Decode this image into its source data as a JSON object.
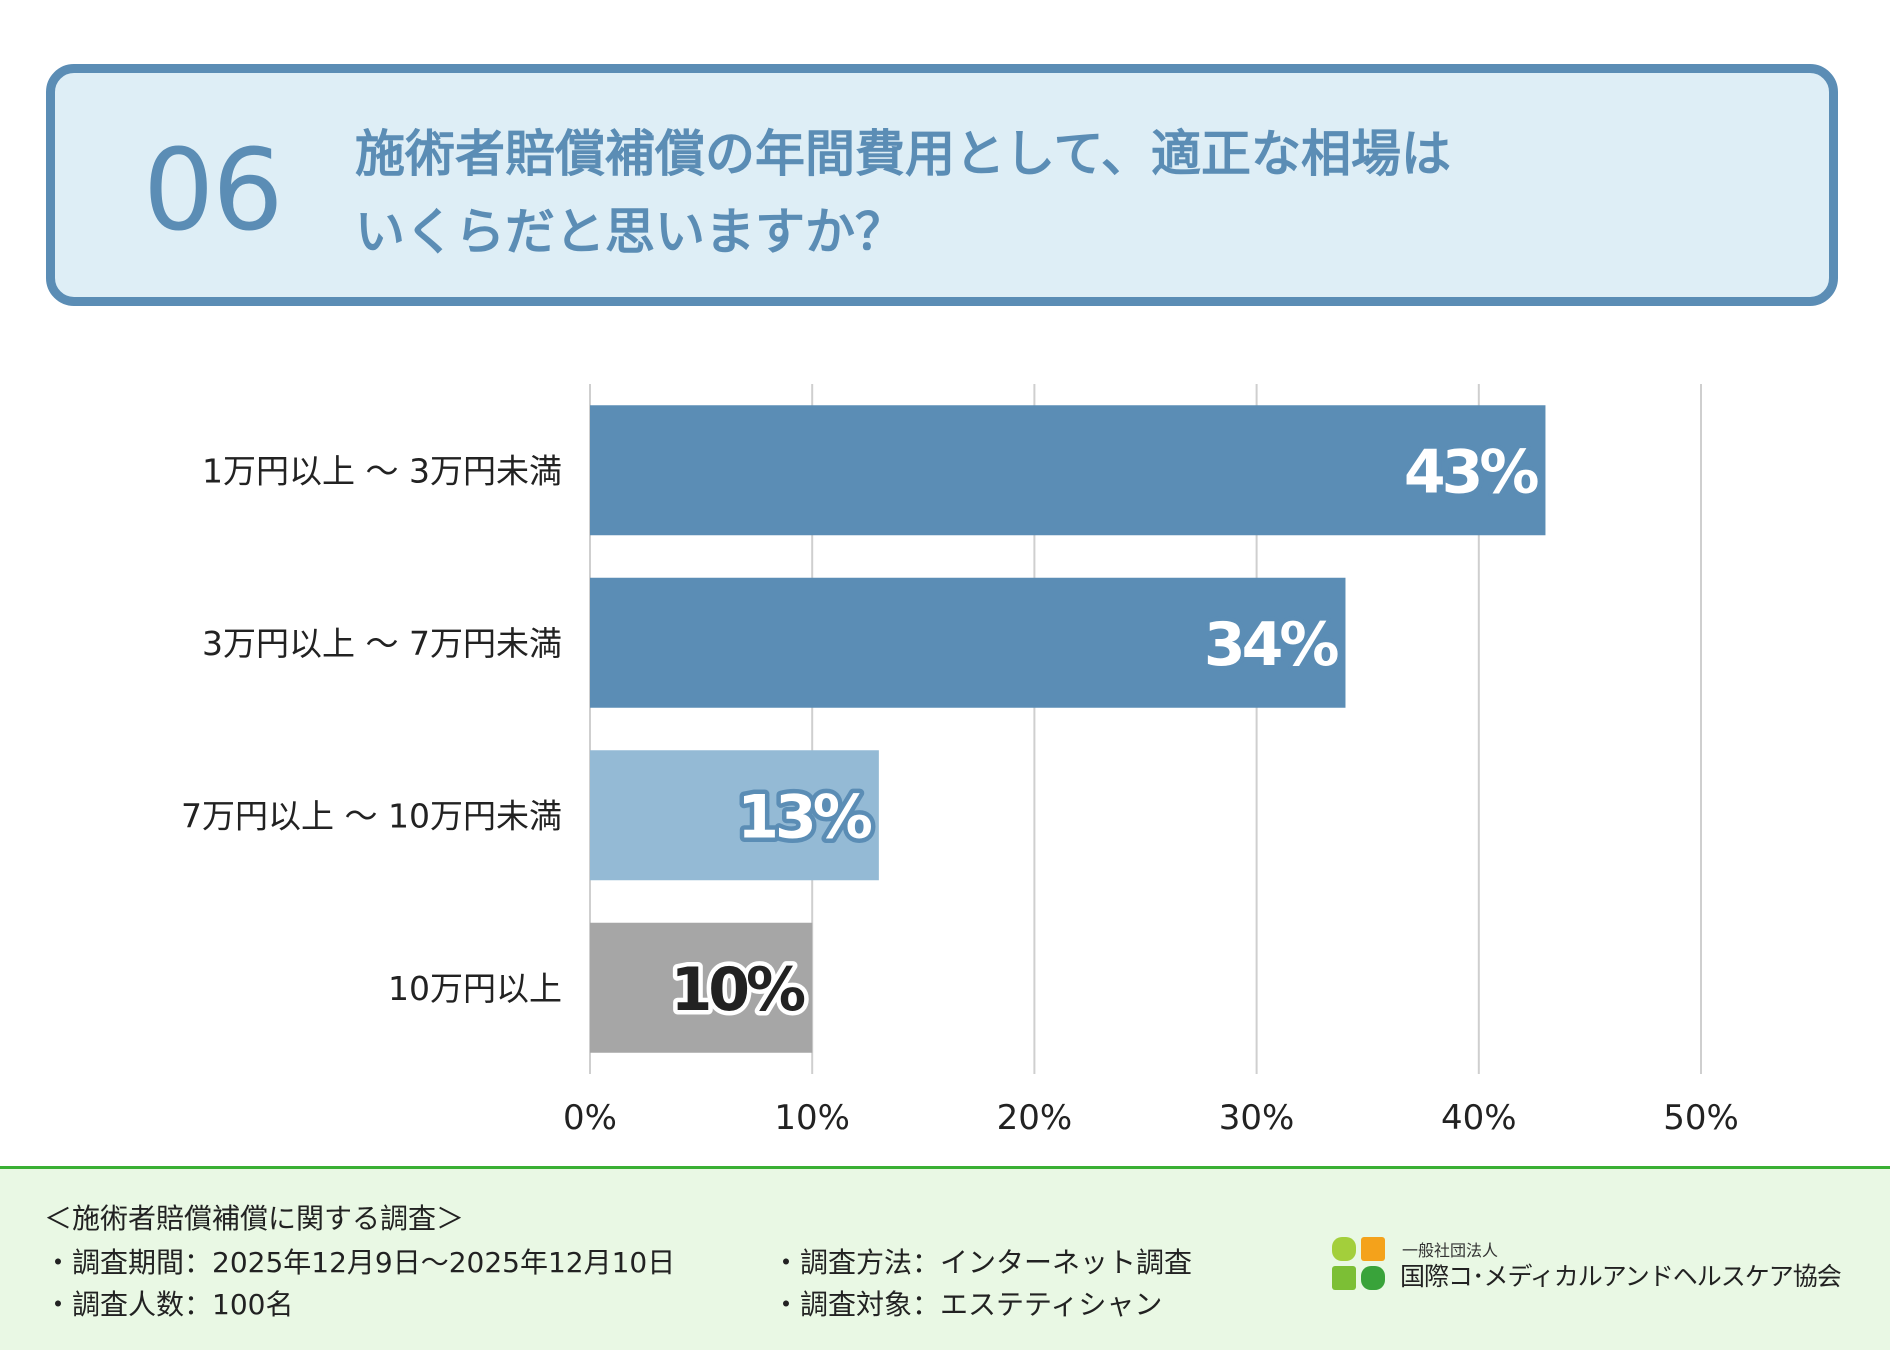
{
  "header": {
    "number": "06",
    "question_line1": "施術者賠償補償の年間費用として、適正な相場は",
    "question_line2": "いくらだと思いますか？"
  },
  "colors": {
    "header_bg": "#deeef6",
    "header_border": "#5b8db5",
    "bar_dark": "#5b8db5",
    "bar_light": "#94bad5",
    "bar_gray": "#a6a6a6",
    "footer_bg": "#e9f8e4",
    "footer_line": "#39b033"
  },
  "chart_data": {
    "type": "bar",
    "orientation": "horizontal",
    "categories": [
      "1万円以上 ～ 3万円未満",
      "3万円以上 ～ 7万円未満",
      "7万円以上 ～ 10万円未満",
      "10万円以上"
    ],
    "values": [
      43,
      34,
      13,
      10
    ],
    "value_labels": [
      "43%",
      "34%",
      "13%",
      "10%"
    ],
    "bar_colors": [
      "#5b8db5",
      "#5b8db5",
      "#94bad5",
      "#a6a6a6"
    ],
    "label_colors": [
      "#ffffff",
      "#ffffff",
      "#ffffff",
      "#222222"
    ],
    "label_outline_colors": [
      "#5b8db5",
      "#5b8db5",
      "#5b8db5",
      "#ffffff"
    ],
    "xlim": [
      0,
      50
    ],
    "xticks": [
      0,
      10,
      20,
      30,
      40,
      50
    ],
    "xtick_labels": [
      "0%",
      "10%",
      "20%",
      "30%",
      "40%",
      "50%"
    ],
    "grid": true,
    "title": "",
    "xlabel": "",
    "ylabel": ""
  },
  "footer": {
    "survey_title": "＜施術者賠償補償に関する調査＞",
    "period": "・調査期間：2025年12月9日～2025年12月10日",
    "count": "・調査人数：100名",
    "method": "・調査方法：インターネット調査",
    "target": "・調査対象：エステティシャン",
    "org_small": "一般社団法人",
    "org_name": "国際コ･メディカルアンドヘルスケア協会"
  }
}
